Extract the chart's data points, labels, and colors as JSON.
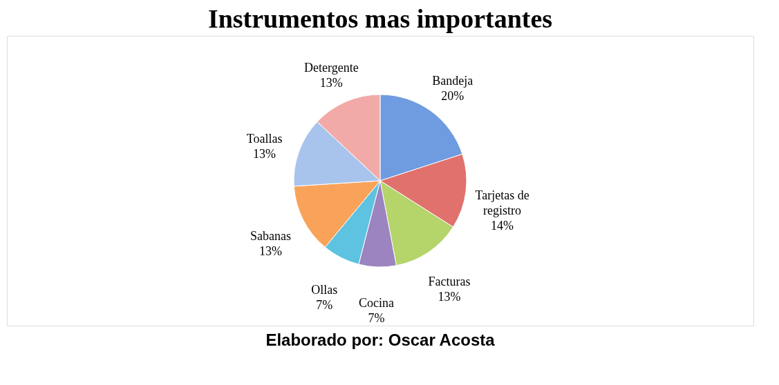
{
  "chart_data": {
    "type": "pie",
    "title": "Instrumentos mas importantes",
    "categories": [
      "Bandeja",
      "Tarjetas de registro",
      "Facturas",
      "Cocina",
      "Ollas",
      "Sabanas",
      "Toallas",
      "Detergente"
    ],
    "values": [
      20,
      14,
      13,
      7,
      7,
      13,
      13,
      13
    ],
    "value_labels": [
      "20%",
      "14%",
      "13%",
      "7%",
      "7%",
      "13%",
      "13%",
      "13%"
    ],
    "colors": [
      "#6f9be0",
      "#e0716c",
      "#b5d46a",
      "#9b84bf",
      "#5ec3e0",
      "#f9a35a",
      "#a9c4ec",
      "#f2aaa8"
    ],
    "legend": false,
    "annotations": [
      "Elaborado por: Oscar Acosta"
    ]
  }
}
